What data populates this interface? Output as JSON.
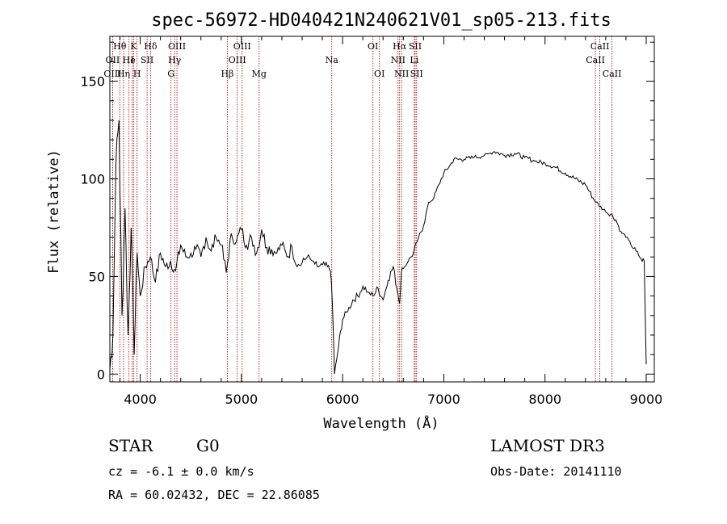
{
  "chart_data": {
    "type": "line",
    "title": "spec-56972-HD040421N240621V01_sp05-213.fits",
    "xlabel": "Wavelength (Å)",
    "ylabel": "Flux (relative)",
    "xlim": [
      3700,
      9080
    ],
    "ylim": [
      -4,
      173
    ],
    "xticks": [
      4000,
      5000,
      6000,
      7000,
      8000,
      9000
    ],
    "yticks": [
      0,
      50,
      100,
      150
    ],
    "series": [
      {
        "name": "flux",
        "x": [
          3700,
          3730,
          3760,
          3790,
          3820,
          3850,
          3880,
          3910,
          3940,
          3970,
          4000,
          4050,
          4100,
          4150,
          4200,
          4250,
          4300,
          4350,
          4400,
          4450,
          4500,
          4550,
          4600,
          4650,
          4700,
          4750,
          4800,
          4850,
          4900,
          4950,
          5000,
          5050,
          5100,
          5150,
          5200,
          5250,
          5300,
          5350,
          5400,
          5450,
          5500,
          5550,
          5600,
          5650,
          5700,
          5750,
          5800,
          5850,
          5880,
          5900,
          5920,
          5940,
          5960,
          5980,
          6000,
          6050,
          6100,
          6150,
          6200,
          6250,
          6300,
          6350,
          6400,
          6450,
          6500,
          6550,
          6563,
          6580,
          6600,
          6650,
          6700,
          6750,
          6800,
          6850,
          6900,
          6950,
          7000,
          7050,
          7100,
          7200,
          7300,
          7400,
          7450,
          7500,
          7600,
          7700,
          7800,
          7900,
          8000,
          8100,
          8200,
          8300,
          8400,
          8500,
          8550,
          8600,
          8650,
          8700,
          8750,
          8800,
          8850,
          8900,
          8950,
          8980,
          9000
        ],
        "y": [
          2,
          20,
          108,
          130,
          30,
          85,
          20,
          75,
          10,
          62,
          40,
          55,
          60,
          47,
          62,
          55,
          58,
          53,
          66,
          60,
          62,
          64,
          60,
          70,
          63,
          70,
          66,
          52,
          72,
          68,
          74,
          66,
          70,
          62,
          74,
          65,
          64,
          62,
          66,
          60,
          65,
          55,
          57,
          60,
          58,
          55,
          56,
          55,
          53,
          35,
          0,
          7,
          14,
          22,
          28,
          32,
          38,
          40,
          45,
          42,
          40,
          44,
          38,
          48,
          55,
          40,
          36,
          52,
          54,
          58,
          62,
          70,
          76,
          88,
          90,
          97,
          103,
          106,
          110,
          110,
          111,
          112,
          113,
          114,
          112,
          113,
          111,
          109,
          108,
          106,
          103,
          100,
          97,
          88,
          86,
          83,
          82,
          79,
          73,
          70,
          66,
          63,
          59,
          58,
          5
        ]
      }
    ],
    "line_markers": [
      {
        "label": "Hθ",
        "x": 3798,
        "row": 0
      },
      {
        "label": "K",
        "x": 3934,
        "row": 0
      },
      {
        "label": "Hδ",
        "x": 4102,
        "row": 0
      },
      {
        "label": "OIII",
        "x": 4363,
        "row": 0
      },
      {
        "label": "OIII",
        "x": 5007,
        "row": 0
      },
      {
        "label": "OI",
        "x": 6300,
        "row": 0
      },
      {
        "label": "Hα",
        "x": 6563,
        "row": 0
      },
      {
        "label": "SII",
        "x": 6717,
        "row": 0
      },
      {
        "label": "CaII",
        "x": 8542,
        "row": 0
      },
      {
        "label": "OII",
        "x": 3727,
        "row": 1
      },
      {
        "label": "He",
        "x": 3889,
        "row": 1
      },
      {
        "label": "I",
        "x": 3921,
        "row": 1
      },
      {
        "label": "SII",
        "x": 4068,
        "row": 1
      },
      {
        "label": "Hγ",
        "x": 4340,
        "row": 1
      },
      {
        "label": "OIII",
        "x": 4959,
        "row": 1
      },
      {
        "label": "Na",
        "x": 5893,
        "row": 1
      },
      {
        "label": "NII",
        "x": 6548,
        "row": 1
      },
      {
        "label": "Li",
        "x": 6708,
        "row": 1
      },
      {
        "label": "CaII",
        "x": 8498,
        "row": 1
      },
      {
        "label": "OIII",
        "x": 3727,
        "row": 2
      },
      {
        "label": "Hη",
        "x": 3835,
        "row": 2
      },
      {
        "label": "H",
        "x": 3969,
        "row": 2
      },
      {
        "label": "G",
        "x": 4304,
        "row": 2
      },
      {
        "label": "Hβ",
        "x": 4861,
        "row": 2
      },
      {
        "label": "Mg",
        "x": 5175,
        "row": 2
      },
      {
        "label": "OI",
        "x": 6364,
        "row": 2
      },
      {
        "label": "NII",
        "x": 6583,
        "row": 2
      },
      {
        "label": "SII",
        "x": 6731,
        "row": 2
      },
      {
        "label": "CaII",
        "x": 8662,
        "row": 2
      }
    ]
  },
  "info": {
    "object_type": "STAR",
    "subclass": "G0",
    "survey": "LAMOST DR3",
    "redshift": "cz = -6.1 ± 0.0 km/s",
    "obs_date": "Obs-Date: 20141110",
    "coords": "RA =  60.02432, DEC =  22.86085"
  }
}
